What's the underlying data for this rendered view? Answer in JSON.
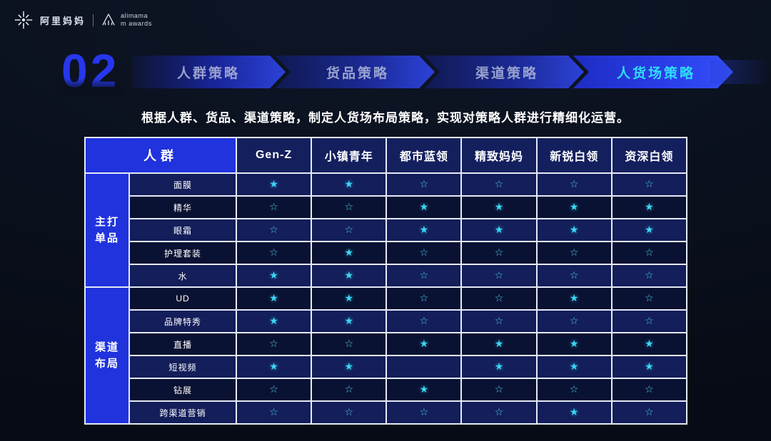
{
  "brand": {
    "logo_text": "阿里妈妈",
    "awards_name": "alimama",
    "awards_sub": "m awards"
  },
  "section_number": "02",
  "nav_tabs": [
    {
      "label": "人群策略",
      "active": false
    },
    {
      "label": "货品策略",
      "active": false
    },
    {
      "label": "渠道策略",
      "active": false
    },
    {
      "label": "人货场策略",
      "active": true
    }
  ],
  "subtitle": "根据人群、货品、渠道策略，制定人货场布局策略，实现对策略人群进行精细化运营。",
  "table": {
    "corner_header": "人群",
    "audience_columns": [
      "Gen-Z",
      "小镇青年",
      "都市蓝领",
      "精致妈妈",
      "新锐白领",
      "资深白领"
    ],
    "groups": [
      {
        "label": "主打单品",
        "rows": [
          {
            "label": "面膜",
            "ratings": [
              "filled",
              "filled",
              "outline",
              "outline",
              "outline",
              "outline"
            ]
          },
          {
            "label": "精华",
            "ratings": [
              "outline",
              "outline",
              "filled",
              "filled",
              "filled",
              "filled"
            ]
          },
          {
            "label": "眼霜",
            "ratings": [
              "outline",
              "outline",
              "filled",
              "filled",
              "filled",
              "filled"
            ]
          },
          {
            "label": "护理套装",
            "ratings": [
              "outline",
              "filled",
              "outline",
              "outline",
              "outline",
              "outline"
            ]
          },
          {
            "label": "水",
            "ratings": [
              "filled",
              "filled",
              "outline",
              "outline",
              "outline",
              "outline"
            ]
          }
        ]
      },
      {
        "label": "渠道布局",
        "rows": [
          {
            "label": "UD",
            "ratings": [
              "filled",
              "filled",
              "outline",
              "outline",
              "filled",
              "outline"
            ]
          },
          {
            "label": "品牌特秀",
            "ratings": [
              "filled",
              "filled",
              "outline",
              "outline",
              "outline",
              "outline"
            ]
          },
          {
            "label": "直播",
            "ratings": [
              "outline",
              "outline",
              "filled",
              "filled",
              "filled",
              "filled"
            ]
          },
          {
            "label": "短视频",
            "ratings": [
              "filled",
              "filled",
              "none",
              "filled",
              "filled",
              "filled"
            ]
          },
          {
            "label": "钻展",
            "ratings": [
              "outline",
              "outline",
              "filled",
              "outline",
              "outline",
              "outline"
            ]
          },
          {
            "label": "跨渠道营销",
            "ratings": [
              "outline",
              "outline",
              "outline",
              "outline",
              "filled",
              "outline"
            ]
          }
        ]
      }
    ],
    "symbols": {
      "filled": "★",
      "outline": "☆",
      "none": ""
    }
  },
  "colors": {
    "accent_blue": "#2033dd",
    "header_cell": "#14205e",
    "row_odd": "#131e5a",
    "row_even": "#0a1233",
    "border": "#e4eaf5",
    "star_cyan": "#3bd7f5",
    "tab_text": "#99a2cf",
    "active_tab_text": "#2fdcf8",
    "number_blue": "#2737ec"
  }
}
